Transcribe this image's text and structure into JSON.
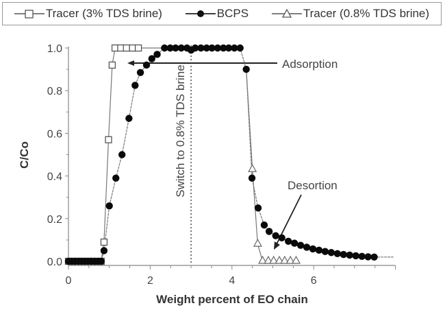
{
  "legend": {
    "items": [
      {
        "label": "Tracer (3% TDS brine)",
        "marker": "open-square"
      },
      {
        "label": "BCPS",
        "marker": "filled-circle"
      },
      {
        "label": "Tracer (0.8% TDS brine)",
        "marker": "open-triangle"
      }
    ]
  },
  "annotations": {
    "switch": "Switch to 0.8% TDS brine",
    "adsorption": "Adsorption",
    "desorption": "Desortion"
  },
  "axes": {
    "xlabel": "Weight percent of EO chain",
    "ylabel": "C/Co",
    "xticks": [
      "0",
      "2",
      "4",
      "6"
    ],
    "yticks": [
      "0.0",
      "0.2",
      "0.4",
      "0.6",
      "0.8",
      "1.0"
    ]
  },
  "chart_data": {
    "type": "scatter",
    "title": "",
    "xlabel": "Weight percent of EO chain",
    "ylabel": "C/Co",
    "xlim": [
      0,
      8
    ],
    "ylim": [
      0,
      1.0
    ],
    "grid": false,
    "legend_position": "top",
    "annotations": [
      {
        "text": "Switch to 0.8% TDS brine",
        "type": "vertical-dotted-line",
        "x": 3.0
      },
      {
        "text": "Adsorption",
        "type": "arrow",
        "x": 1.5,
        "y": 0.92
      },
      {
        "text": "Desortion",
        "type": "arrow",
        "x": 5.0,
        "y": 0.05
      }
    ],
    "series": [
      {
        "name": "Tracer (3% TDS brine)",
        "marker": "open-square",
        "x": [
          0.0,
          0.1,
          0.2,
          0.3,
          0.4,
          0.5,
          0.6,
          0.7,
          0.8,
          0.87,
          0.98,
          1.07,
          1.14,
          1.28,
          1.42,
          1.57,
          1.71
        ],
        "y": [
          0.0,
          0.0,
          0.0,
          0.0,
          0.0,
          0.0,
          0.0,
          0.0,
          0.0,
          0.09,
          0.57,
          0.92,
          1.0,
          1.0,
          1.0,
          1.0,
          1.0
        ]
      },
      {
        "name": "BCPS",
        "marker": "filled-circle",
        "x": [
          0.0,
          0.08,
          0.16,
          0.24,
          0.32,
          0.4,
          0.48,
          0.56,
          0.64,
          0.72,
          0.8,
          0.87,
          1.0,
          1.16,
          1.31,
          1.48,
          1.63,
          1.76,
          1.91,
          2.04,
          2.17,
          2.35,
          2.49,
          2.62,
          2.76,
          2.9,
          3.0,
          3.1,
          3.24,
          3.38,
          3.51,
          3.65,
          3.79,
          3.92,
          4.06,
          4.2,
          4.35,
          4.49,
          4.64,
          4.79,
          4.91,
          5.07,
          5.22,
          5.38,
          5.53,
          5.68,
          5.83,
          5.98,
          6.13,
          6.28,
          6.43,
          6.58,
          6.73,
          6.88,
          7.03,
          7.18,
          7.33,
          7.48
        ],
        "y": [
          0.0,
          0.0,
          0.0,
          0.0,
          0.0,
          0.0,
          0.0,
          0.0,
          0.0,
          0.0,
          0.0,
          0.05,
          0.26,
          0.39,
          0.5,
          0.67,
          0.825,
          0.885,
          0.92,
          0.95,
          0.97,
          1.0,
          1.0,
          1.0,
          1.0,
          1.0,
          0.99,
          1.0,
          1.0,
          1.0,
          1.0,
          1.0,
          1.0,
          1.0,
          1.0,
          1.0,
          0.9,
          0.39,
          0.25,
          0.17,
          0.14,
          0.12,
          0.11,
          0.094,
          0.085,
          0.075,
          0.066,
          0.058,
          0.052,
          0.046,
          0.041,
          0.036,
          0.032,
          0.029,
          0.026,
          0.023,
          0.021,
          0.02
        ]
      },
      {
        "name": "Tracer (0.8% TDS brine)",
        "marker": "open-triangle",
        "x": [
          4.5,
          4.63,
          4.75,
          4.89,
          5.02,
          5.16,
          5.29,
          5.43,
          5.57
        ],
        "y": [
          0.43,
          0.08,
          0.0,
          0.0,
          0.0,
          0.0,
          0.0,
          0.0,
          0.0
        ]
      }
    ]
  }
}
